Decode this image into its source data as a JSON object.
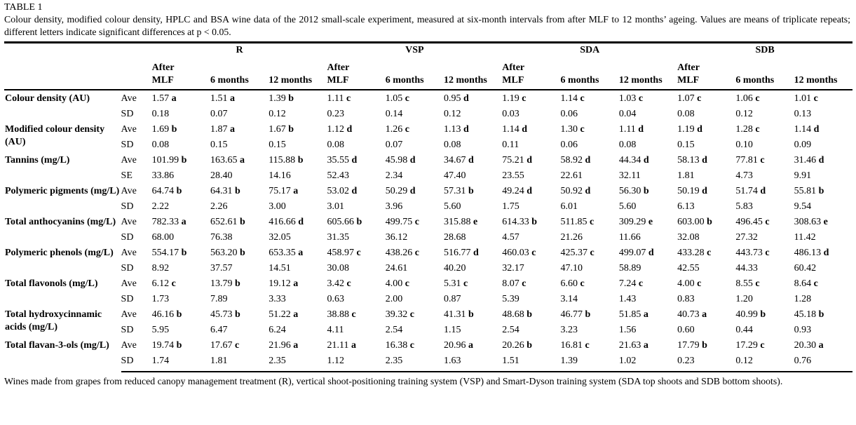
{
  "table": {
    "number": "TABLE 1",
    "caption": "Colour density, modified colour density, HPLC and BSA wine data of the 2012 small-scale experiment, measured at six-month intervals from after MLF to 12 months’ ageing. Values are means of triplicate repeats; different letters indicate significant differences at p < 0.05.",
    "footnote": "Wines made from grapes from reduced canopy management treatment (R), vertical shoot-positioning training system (VSP) and Smart-Dyson training system (SDA top shoots and SDB bottom shoots).",
    "groups": [
      "R",
      "VSP",
      "SDA",
      "SDB"
    ],
    "sub_headers": [
      "After\nMLF",
      "6 months",
      "12 months"
    ],
    "rows": [
      {
        "label": "Colour density (AU)",
        "sub": [
          {
            "stat": "Ave",
            "values": [
              "1.57 a",
              "1.51 a",
              "1.39 b",
              "1.11 c",
              "1.05 c",
              "0.95 d",
              "1.19 c",
              "1.14 c",
              "1.03 c",
              "1.07 c",
              "1.06 c",
              "1.01 c"
            ]
          },
          {
            "stat": "SD",
            "values": [
              "0.18",
              "0.07",
              "0.12",
              "0.23",
              "0.14",
              "0.12",
              "0.03",
              "0.06",
              "0.04",
              "0.08",
              "0.12",
              "0.13"
            ]
          }
        ]
      },
      {
        "label": "Modified colour density (AU)",
        "sub": [
          {
            "stat": "Ave",
            "values": [
              "1.69 b",
              "1.87 a",
              "1.67 b",
              "1.12 d",
              "1.26 c",
              "1.13 d",
              "1.14 d",
              "1.30 c",
              "1.11 d",
              "1.19 d",
              "1.28 c",
              "1.14 d"
            ]
          },
          {
            "stat": "SD",
            "values": [
              "0.08",
              "0.15",
              "0.15",
              "0.08",
              "0.07",
              "0.08",
              "0.11",
              "0.06",
              "0.08",
              "0.15",
              "0.10",
              "0.09"
            ]
          }
        ]
      },
      {
        "label": "Tannins (mg/L)",
        "sub": [
          {
            "stat": "Ave",
            "values": [
              "101.99 b",
              "163.65 a",
              "115.88 b",
              "35.55 d",
              "45.98 d",
              "34.67 d",
              "75.21 d",
              "58.92 d",
              "44.34 d",
              "58.13 d",
              "77.81 c",
              "31.46 d"
            ]
          },
          {
            "stat": "SE",
            "values": [
              "33.86",
              "28.40",
              "14.16",
              "52.43",
              "2.34",
              "47.40",
              "23.55",
              "22.61",
              "32.11",
              "1.81",
              "4.73",
              "9.91"
            ]
          }
        ]
      },
      {
        "label": "Polymeric pigments (mg/L)",
        "sub": [
          {
            "stat": "Ave",
            "values": [
              "64.74 b",
              "64.31 b",
              "75.17 a",
              "53.02 d",
              "50.29 d",
              "57.31 b",
              "49.24 d",
              "50.92 d",
              "56.30 b",
              "50.19 d",
              "51.74 d",
              "55.81 b"
            ]
          },
          {
            "stat": "SD",
            "values": [
              "2.22",
              "2.26",
              "3.00",
              "3.01",
              "3.96",
              "5.60",
              "1.75",
              "6.01",
              "5.60",
              "6.13",
              "5.83",
              "9.54"
            ]
          }
        ]
      },
      {
        "label": "Total anthocyanins (mg/L)",
        "sub": [
          {
            "stat": "Ave",
            "values": [
              "782.33 a",
              "652.61 b",
              "416.66 d",
              "605.66 b",
              "499.75 c",
              "315.88 e",
              "614.33 b",
              "511.85 c",
              "309.29 e",
              "603.00 b",
              "496.45 c",
              "308.63 e"
            ]
          },
          {
            "stat": "SD",
            "values": [
              "68.00",
              "76.38",
              "32.05",
              "31.35",
              "36.12",
              "28.68",
              "4.57",
              "21.26",
              "11.66",
              "32.08",
              "27.32",
              "11.42"
            ]
          }
        ]
      },
      {
        "label": "Polymeric phenols (mg/L)",
        "sub": [
          {
            "stat": "Ave",
            "values": [
              "554.17 b",
              "563.20 b",
              "653.35 a",
              "458.97 c",
              "438.26 c",
              "516.77 d",
              "460.03 c",
              "425.37 c",
              "499.07 d",
              "433.28 c",
              "443.73 c",
              "486.13 d"
            ]
          },
          {
            "stat": "SD",
            "values": [
              "8.92",
              "37.57",
              "14.51",
              "30.08",
              "24.61",
              "40.20",
              "32.17",
              "47.10",
              "58.89",
              "42.55",
              "44.33",
              "60.42"
            ]
          }
        ]
      },
      {
        "label": "Total flavonols (mg/L)",
        "sub": [
          {
            "stat": "Ave",
            "values": [
              "6.12 c",
              "13.79 b",
              "19.12 a",
              "3.42 c",
              "4.00 c",
              "5.31 c",
              "8.07 c",
              "6.60 c",
              "7.24 c",
              "4.00 c",
              "8.55 c",
              "8.64 c"
            ]
          },
          {
            "stat": "SD",
            "values": [
              "1.73",
              "7.89",
              "3.33",
              "0.63",
              "2.00",
              "0.87",
              "5.39",
              "3.14",
              "1.43",
              "0.83",
              "1.20",
              "1.28"
            ]
          }
        ]
      },
      {
        "label": "Total hydroxycinnamic acids (mg/L)",
        "sub": [
          {
            "stat": "Ave",
            "values": [
              "46.16 b",
              "45.73 b",
              "51.22 a",
              "38.88 c",
              "39.32 c",
              "41.31 b",
              "48.68 b",
              "46.77 b",
              "51.85 a",
              "40.73 a",
              "40.99 b",
              "45.18 b"
            ]
          },
          {
            "stat": "SD",
            "values": [
              "5.95",
              "6.47",
              "6.24",
              "4.11",
              "2.54",
              "1.15",
              "2.54",
              "3.23",
              "1.56",
              "0.60",
              "0.44",
              "0.93"
            ]
          }
        ]
      },
      {
        "label": "Total flavan-3-ols (mg/L)",
        "sub": [
          {
            "stat": "Ave",
            "values": [
              "19.74 b",
              "17.67 c",
              "21.96 a",
              "21.11 a",
              "16.38 c",
              "20.96 a",
              "20.26 b",
              "16.81 c",
              "21.63 a",
              "17.79 b",
              "17.29 c",
              "20.30 a"
            ]
          },
          {
            "stat": "SD",
            "values": [
              "1.74",
              "1.81",
              "2.35",
              "1.12",
              "2.35",
              "1.63",
              "1.51",
              "1.39",
              "1.02",
              "0.23",
              "0.12",
              "0.76"
            ]
          }
        ]
      }
    ]
  }
}
